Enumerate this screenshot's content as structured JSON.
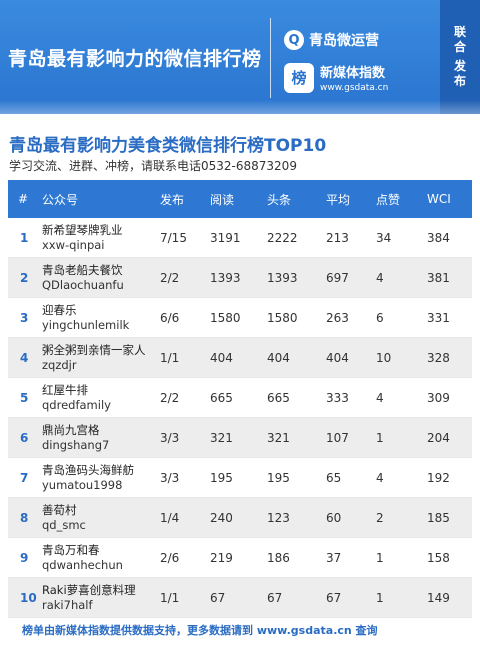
{
  "banner": {
    "title": "青岛最有影响力的微信排行榜",
    "brand1_icon": "Q",
    "brand1_name": "青岛微运营",
    "brand2_logo": "榜",
    "brand2_name": "新媒体指数",
    "brand2_url": "www.gsdata.cn",
    "joint_chars": [
      "联",
      "合",
      "发",
      "布"
    ]
  },
  "heading": "青岛最有影响力美食类微信排行榜TOP10",
  "subheading": "学习交流、进群、冲榜，请联系电话0532-68873209",
  "table": {
    "headers": {
      "rank": "#",
      "account": "公众号",
      "published": "发布",
      "reads": "阅读",
      "headline": "头条",
      "average": "平均",
      "likes": "点赞",
      "wci": "WCI"
    },
    "rows": [
      {
        "rank": "1",
        "name": "新希望琴牌乳业",
        "id": "xxw-qinpai",
        "published": "7/15",
        "reads": "3191",
        "headline": "2222",
        "average": "213",
        "likes": "34",
        "wci": "384"
      },
      {
        "rank": "2",
        "name": "青岛老船夫餐饮",
        "id": "QDlaochuanfu",
        "published": "2/2",
        "reads": "1393",
        "headline": "1393",
        "average": "697",
        "likes": "4",
        "wci": "381"
      },
      {
        "rank": "3",
        "name": "迎春乐",
        "id": "yingchunlemilk",
        "published": "6/6",
        "reads": "1580",
        "headline": "1580",
        "average": "263",
        "likes": "6",
        "wci": "331"
      },
      {
        "rank": "4",
        "name": "粥全粥到亲情一家人",
        "id": "zqzdjr",
        "published": "1/1",
        "reads": "404",
        "headline": "404",
        "average": "404",
        "likes": "10",
        "wci": "328"
      },
      {
        "rank": "5",
        "name": "红屋牛排",
        "id": "qdredfamily",
        "published": "2/2",
        "reads": "665",
        "headline": "665",
        "average": "333",
        "likes": "4",
        "wci": "309"
      },
      {
        "rank": "6",
        "name": "鼎尚九宫格",
        "id": "dingshang7",
        "published": "3/3",
        "reads": "321",
        "headline": "321",
        "average": "107",
        "likes": "1",
        "wci": "204"
      },
      {
        "rank": "7",
        "name": "青岛渔码头海鲜舫",
        "id": "yumatou1998",
        "published": "3/3",
        "reads": "195",
        "headline": "195",
        "average": "65",
        "likes": "4",
        "wci": "192"
      },
      {
        "rank": "8",
        "name": "善荀村",
        "id": "qd_smc",
        "published": "1/4",
        "reads": "240",
        "headline": "123",
        "average": "60",
        "likes": "2",
        "wci": "185"
      },
      {
        "rank": "9",
        "name": "青岛万和春",
        "id": "qdwanhechun",
        "published": "2/6",
        "reads": "219",
        "headline": "186",
        "average": "37",
        "likes": "1",
        "wci": "158"
      },
      {
        "rank": "10",
        "name": "Raki萝喜创意料理",
        "id": "raki7half",
        "published": "1/1",
        "reads": "67",
        "headline": "67",
        "average": "67",
        "likes": "1",
        "wci": "149"
      }
    ]
  },
  "footer": "榜单由新媒体指数提供数据支持，更多数据请到 www.gsdata.cn 查询",
  "colors": {
    "banner": "#2a74cf",
    "heading": "#2a6cc4",
    "table_header": "#2e78d3",
    "row_alt": "#ededed"
  }
}
